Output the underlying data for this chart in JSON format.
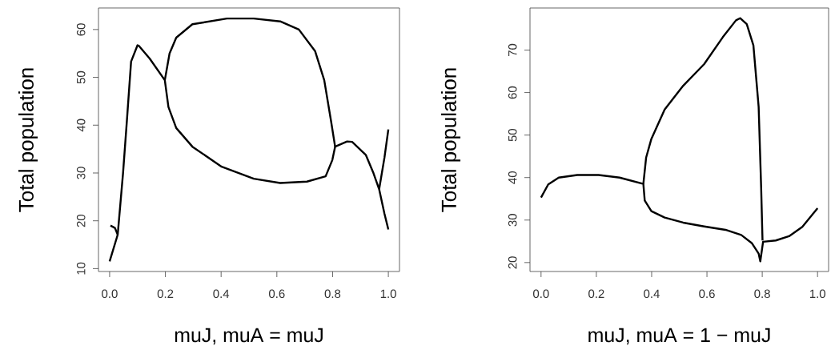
{
  "chart_data": [
    {
      "type": "line",
      "xlabel": "muJ,    muA = muJ",
      "ylabel": "Total population",
      "xlim": [
        -0.04,
        1.04
      ],
      "ylim": [
        9.4,
        64.5
      ],
      "grid": false,
      "xticks": [
        {
          "value": 0,
          "label": "0.0"
        },
        {
          "value": 0.2,
          "label": "0.2"
        },
        {
          "value": 0.4,
          "label": "0.4"
        },
        {
          "value": 0.6,
          "label": "0.6"
        },
        {
          "value": 0.8,
          "label": "0.8"
        },
        {
          "value": 1,
          "label": "1.0"
        }
      ],
      "yticks": [
        10,
        20,
        30,
        40,
        50,
        60
      ],
      "series": [
        {
          "color": "#000000",
          "x": [
            0,
            0.029,
            0.048,
            0.062,
            0.077,
            0.1,
            0.105,
            0.144,
            0.198,
            0.211,
            0.239,
            0.297,
            0.402,
            0.517,
            0.612,
            0.708,
            0.775,
            0.799,
            0.809,
            0.852,
            0.87,
            0.919,
            0.947,
            0.967,
            0.986,
            1.0
          ],
          "values": [
            11.5,
            17.1,
            29.9,
            41,
            53.3,
            56.7,
            56.6,
            53.9,
            49.4,
            43.8,
            39.4,
            35.5,
            31.3,
            28.8,
            27.9,
            28.2,
            29.3,
            32.7,
            35.5,
            36.6,
            36.5,
            33.8,
            29.9,
            26.6,
            21.5,
            18.2
          ]
        },
        {
          "color": "#000000",
          "x": [
            0.198,
            0.215,
            0.239,
            0.297,
            0.421,
            0.517,
            0.612,
            0.679,
            0.737,
            0.77,
            0.794,
            0.809
          ],
          "values": [
            49.4,
            55,
            58.3,
            61.1,
            62.3,
            62.3,
            61.7,
            60,
            55.5,
            49.4,
            41,
            35.5
          ]
        },
        {
          "color": "#000000",
          "x": [
            0.967,
            0.986,
            1.0
          ],
          "values": [
            26.6,
            33.2,
            39.1
          ]
        },
        {
          "color": "#000000",
          "x": [
            0.003,
            0.019,
            0.029
          ],
          "values": [
            19.0,
            18.5,
            17.1
          ]
        }
      ]
    },
    {
      "type": "line",
      "xlabel": "muJ,    muA = 1 − muJ",
      "ylabel": "Total population",
      "xlim": [
        -0.04,
        1.04
      ],
      "ylim": [
        17.9,
        79.9
      ],
      "grid": false,
      "xticks": [
        {
          "value": 0,
          "label": "0.0"
        },
        {
          "value": 0.2,
          "label": "0.2"
        },
        {
          "value": 0.4,
          "label": "0.4"
        },
        {
          "value": 0.6,
          "label": "0.6"
        },
        {
          "value": 0.8,
          "label": "0.8"
        },
        {
          "value": 1,
          "label": "1.0"
        }
      ],
      "yticks": [
        20,
        30,
        40,
        50,
        60,
        70
      ],
      "series": [
        {
          "color": "#000000",
          "x": [
            0,
            0.026,
            0.064,
            0.131,
            0.208,
            0.284,
            0.37,
            0.375,
            0.399,
            0.447,
            0.514,
            0.59,
            0.667,
            0.724,
            0.762,
            0.787,
            0.793,
            0.803,
            0.849,
            0.897,
            0.945,
            1.0
          ],
          "values": [
            35.3,
            38.4,
            40,
            40.6,
            40.6,
            40,
            38.5,
            34.6,
            32.1,
            30.6,
            29.4,
            28.5,
            27.7,
            26.5,
            24.6,
            22.1,
            20.3,
            24.9,
            25.2,
            26.2,
            28.4,
            32.8
          ]
        },
        {
          "color": "#000000",
          "x": [
            0.37,
            0.38,
            0.399,
            0.447,
            0.514,
            0.59,
            0.657,
            0.705,
            0.72,
            0.744,
            0.768,
            0.787,
            0.796,
            0.801
          ],
          "values": [
            38.5,
            44.7,
            49.1,
            56,
            61.6,
            66.7,
            73,
            77,
            77.5,
            76.1,
            71.1,
            56.6,
            37.8,
            25.2
          ]
        }
      ]
    }
  ]
}
